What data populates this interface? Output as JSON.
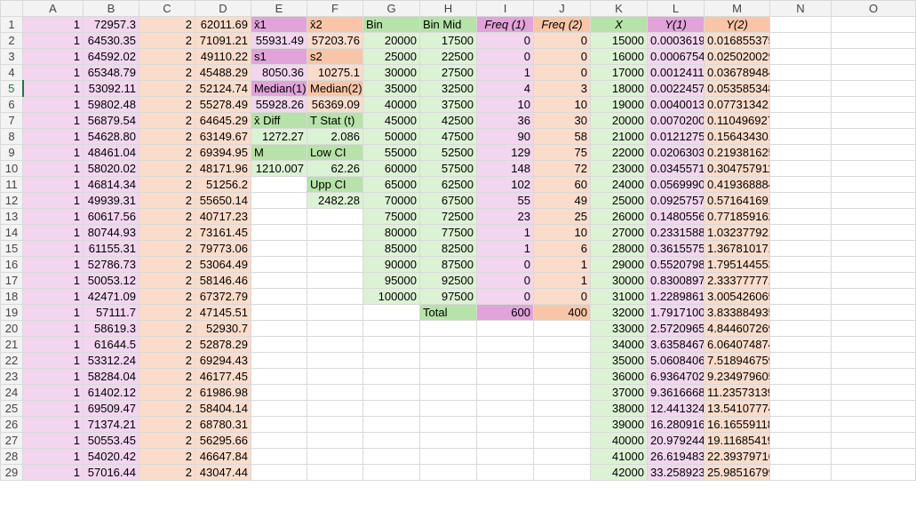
{
  "columns": [
    "A",
    "B",
    "C",
    "D",
    "E",
    "F",
    "G",
    "H",
    "I",
    "J",
    "K",
    "L",
    "M",
    "N",
    "O"
  ],
  "rows": [
    {
      "num": "1",
      "cells": [
        "1",
        "72957.3",
        "2",
        "62011.69",
        "x̄1",
        "x̄2",
        "Bin",
        "Bin Mid",
        "Freq (1)",
        "Freq (2)",
        "X",
        "Y(1)",
        "Y(2)",
        "",
        ""
      ]
    },
    {
      "num": "2",
      "cells": [
        "1",
        "64530.35",
        "2",
        "71091.21",
        "55931.49",
        "57203.76",
        "20000",
        "17500",
        "0",
        "0",
        "15000",
        "0.00036195",
        "0.016855375",
        "",
        ""
      ]
    },
    {
      "num": "3",
      "cells": [
        "1",
        "64592.02",
        "2",
        "49110.22",
        "s1",
        "s2",
        "25000",
        "22500",
        "0",
        "0",
        "16000",
        "0.00067544",
        "0.025020029",
        "",
        ""
      ]
    },
    {
      "num": "4",
      "cells": [
        "1",
        "65348.79",
        "2",
        "45488.29",
        "8050.36",
        "10275.1",
        "30000",
        "27500",
        "1",
        "0",
        "17000",
        "0.00124116",
        "0.036789484",
        "",
        ""
      ]
    },
    {
      "num": "5",
      "cells": [
        "1",
        "53092.11",
        "2",
        "52124.74",
        "Median(1)",
        "Median(2)",
        "35000",
        "32500",
        "4",
        "3",
        "18000",
        "0.00224578",
        "0.053585348",
        "",
        ""
      ]
    },
    {
      "num": "6",
      "cells": [
        "1",
        "59802.48",
        "2",
        "55278.49",
        "55928.26",
        "56369.09",
        "40000",
        "37500",
        "10",
        "10",
        "19000",
        "0.00400132",
        "0.077313421",
        "",
        ""
      ]
    },
    {
      "num": "7",
      "cells": [
        "1",
        "56879.54",
        "2",
        "64645.29",
        "x̄ Diff",
        "T Stat (t)",
        "45000",
        "42500",
        "36",
        "30",
        "20000",
        "0.00702002",
        "0.110496927",
        "",
        ""
      ]
    },
    {
      "num": "8",
      "cells": [
        "1",
        "54628.80",
        "2",
        "63149.67",
        "1272.27",
        "2.086",
        "50000",
        "47500",
        "90",
        "58",
        "21000",
        "0.01212754",
        "0.156434301",
        "",
        ""
      ]
    },
    {
      "num": "9",
      "cells": [
        "1",
        "48461.04",
        "2",
        "69394.95",
        "M",
        "Low CI",
        "55000",
        "52500",
        "129",
        "75",
        "22000",
        "0.0206303",
        "0.219381625",
        "",
        ""
      ]
    },
    {
      "num": "10",
      "cells": [
        "1",
        "58020.02",
        "2",
        "48171.96",
        "1210.007",
        "62.26",
        "60000",
        "57500",
        "148",
        "72",
        "23000",
        "0.0345571",
        "0.304757911",
        "",
        ""
      ]
    },
    {
      "num": "11",
      "cells": [
        "1",
        "46814.34",
        "2",
        "51256.2",
        "",
        "Upp CI",
        "65000",
        "62500",
        "102",
        "60",
        "24000",
        "0.05699906",
        "0.419368884",
        "",
        ""
      ]
    },
    {
      "num": "12",
      "cells": [
        "1",
        "49939.31",
        "2",
        "55650.14",
        "",
        "2482.28",
        "70000",
        "67500",
        "55",
        "49",
        "25000",
        "0.0925757",
        "0.571641691",
        "",
        ""
      ]
    },
    {
      "num": "13",
      "cells": [
        "1",
        "60617.56",
        "2",
        "40717.23",
        "",
        "",
        "75000",
        "72500",
        "23",
        "25",
        "26000",
        "0.14805567",
        "0.771859162",
        "",
        ""
      ]
    },
    {
      "num": "14",
      "cells": [
        "1",
        "80744.93",
        "2",
        "73161.45",
        "",
        "",
        "80000",
        "77500",
        "1",
        "10",
        "27000",
        "0.23315883",
        "1.032377921",
        "",
        ""
      ]
    },
    {
      "num": "15",
      "cells": [
        "1",
        "61155.31",
        "2",
        "79773.06",
        "",
        "",
        "85000",
        "82500",
        "1",
        "6",
        "28000",
        "0.36155758",
        "1.367810171",
        "",
        ""
      ]
    },
    {
      "num": "16",
      "cells": [
        "1",
        "52786.73",
        "2",
        "53064.49",
        "",
        "",
        "90000",
        "87500",
        "0",
        "1",
        "29000",
        "0.55207981",
        "1.795144553",
        "",
        ""
      ]
    },
    {
      "num": "17",
      "cells": [
        "1",
        "50053.12",
        "2",
        "58146.46",
        "",
        "",
        "95000",
        "92500",
        "0",
        "1",
        "30000",
        "0.83008973",
        "2.333777771",
        "",
        ""
      ]
    },
    {
      "num": "18",
      "cells": [
        "1",
        "42471.09",
        "2",
        "67372.79",
        "",
        "",
        "100000",
        "97500",
        "0",
        "0",
        "31000",
        "1.22898618",
        "3.005426065",
        "",
        ""
      ]
    },
    {
      "num": "19",
      "cells": [
        "1",
        "57111.7",
        "2",
        "47145.51",
        "",
        "",
        "",
        "Total",
        "600",
        "400",
        "32000",
        "1.79171009",
        "3.833884935",
        "",
        ""
      ]
    },
    {
      "num": "20",
      "cells": [
        "1",
        "58619.3",
        "2",
        "52930.7",
        "",
        "",
        "",
        "",
        "",
        "",
        "33000",
        "2.57209653",
        "4.844607269",
        "",
        ""
      ]
    },
    {
      "num": "21",
      "cells": [
        "1",
        "61644.5",
        "2",
        "52878.29",
        "",
        "",
        "",
        "",
        "",
        "",
        "34000",
        "3.63584675",
        "6.064074874",
        "",
        ""
      ]
    },
    {
      "num": "22",
      "cells": [
        "1",
        "53312.24",
        "2",
        "69294.43",
        "",
        "",
        "",
        "",
        "",
        "",
        "35000",
        "5.0608406",
        "7.518946759",
        "",
        ""
      ]
    },
    {
      "num": "23",
      "cells": [
        "1",
        "58284.04",
        "2",
        "46177.45",
        "",
        "",
        "",
        "",
        "",
        "",
        "36000",
        "6.93647027",
        "9.234979605",
        "",
        ""
      ]
    },
    {
      "num": "24",
      "cells": [
        "1",
        "61402.12",
        "2",
        "61986.98",
        "",
        "",
        "",
        "",
        "",
        "",
        "37000",
        "9.36166688",
        "11.23573139",
        "",
        ""
      ]
    },
    {
      "num": "25",
      "cells": [
        "1",
        "69509.47",
        "2",
        "58404.14",
        "",
        "",
        "",
        "",
        "",
        "",
        "38000",
        "12.4413246",
        "13.54107774",
        "",
        ""
      ]
    },
    {
      "num": "26",
      "cells": [
        "1",
        "71374.21",
        "2",
        "68780.31",
        "",
        "",
        "",
        "",
        "",
        "",
        "39000",
        "16.2809161",
        "16.16559118",
        "",
        ""
      ]
    },
    {
      "num": "27",
      "cells": [
        "1",
        "50553.45",
        "2",
        "56295.66",
        "",
        "",
        "",
        "",
        "",
        "",
        "40000",
        "20.9792443",
        "19.11685419",
        "",
        ""
      ]
    },
    {
      "num": "28",
      "cells": [
        "1",
        "54020.42",
        "2",
        "46647.84",
        "",
        "",
        "",
        "",
        "",
        "",
        "41000",
        "26.6194835",
        "22.39379716",
        "",
        ""
      ]
    },
    {
      "num": "29",
      "cells": [
        "1",
        "57016.44",
        "2",
        "43047.44",
        "",
        "",
        "",
        "",
        "",
        "",
        "42000",
        "33.2589237",
        "25.98516799",
        "",
        ""
      ]
    }
  ]
}
